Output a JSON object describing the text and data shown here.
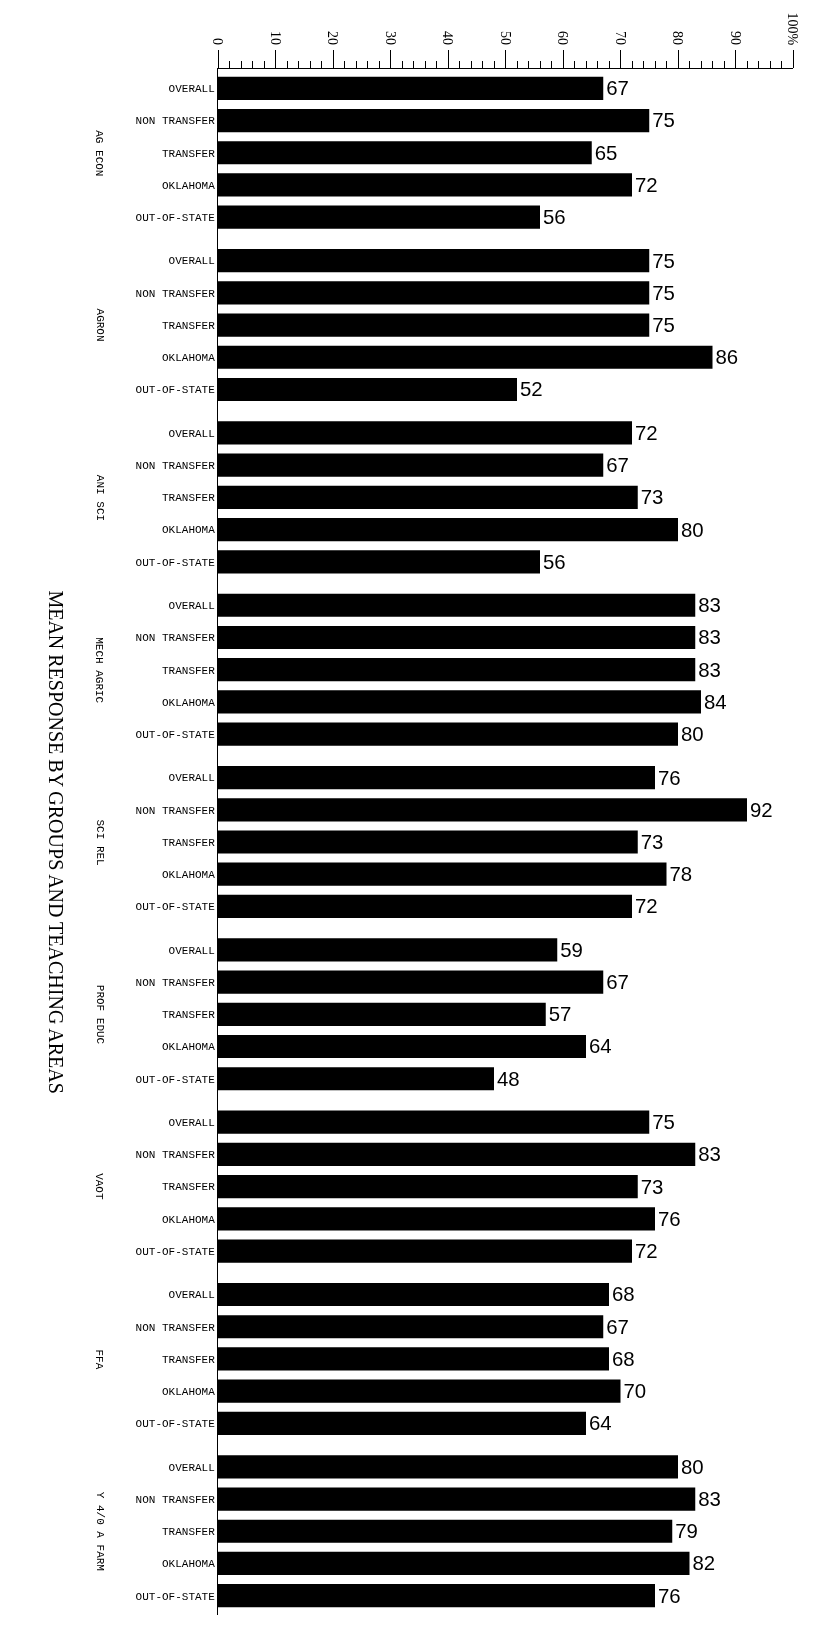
{
  "chart_data": {
    "type": "bar",
    "orientation": "horizontal",
    "title": "MEAN RESPONSE BY GROUPS AND TEACHING AREAS",
    "categories": [
      "OVERALL",
      "NON TRANSFER",
      "TRANSFER",
      "OKLAHOMA",
      "OUT-OF-STATE",
      "OVERALL",
      "NON TRANSFER",
      "TRANSFER",
      "OKLAHOMA",
      "OUT-OF-STATE",
      "OVERALL",
      "NON TRANSFER",
      "TRANSFER",
      "OKLAHOMA",
      "OUT-OF-STATE",
      "OVERALL",
      "NON TRANSFER",
      "TRANSFER",
      "OKLAHOMA",
      "OUT-OF-STATE",
      "OVERALL",
      "NON TRANSFER",
      "TRANSFER",
      "OKLAHOMA",
      "OUT-OF-STATE",
      "OVERALL",
      "NON TRANSFER",
      "TRANSFER",
      "OKLAHOMA",
      "OUT-OF-STATE",
      "OVERALL",
      "NON TRANSFER",
      "TRANSFER",
      "OKLAHOMA",
      "OUT-OF-STATE",
      "OVERALL",
      "NON TRANSFER",
      "TRANSFER",
      "OKLAHOMA",
      "OUT-OF-STATE",
      "OVERALL",
      "NON TRANSFER",
      "TRANSFER",
      "OKLAHOMA",
      "OUT-OF-STATE"
    ],
    "values": [
      67,
      75,
      65,
      72,
      56,
      75,
      75,
      75,
      86,
      52,
      72,
      67,
      73,
      80,
      56,
      83,
      83,
      83,
      84,
      80,
      76,
      92,
      73,
      78,
      72,
      59,
      67,
      57,
      64,
      48,
      75,
      83,
      73,
      76,
      72,
      68,
      67,
      68,
      70,
      64,
      80,
      83,
      79,
      82,
      76
    ],
    "color": "#000000",
    "annotations": [
      "AG ECON",
      "AGRON",
      "ANI SCI",
      "MECH AGRIC",
      "SCI REL",
      "PROF EDUC",
      "VAOT",
      "FFA",
      "Y 4/0 A FARM"
    ],
    "xlim": [
      0,
      100
    ],
    "xticks": [
      0,
      10,
      20,
      30,
      40,
      50,
      60,
      70,
      80,
      90,
      {
        "value": 100,
        "label": "100%"
      }
    ],
    "data_labels": true
  }
}
